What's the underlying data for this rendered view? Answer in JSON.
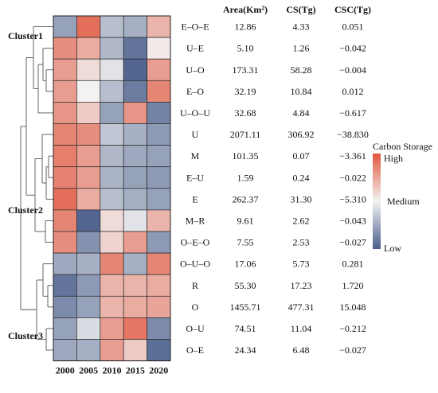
{
  "chart_data": {
    "type": "heatmap",
    "columns": [
      "2000",
      "2005",
      "2010",
      "2015",
      "2020"
    ],
    "rows": [
      "E–O–E",
      "U–E",
      "U–O",
      "E–O",
      "U–O–U",
      "U",
      "M",
      "E–U",
      "E",
      "M–R",
      "O–E–O",
      "O–U–O",
      "R",
      "O",
      "O–U",
      "O–E"
    ],
    "values": [
      [
        -0.55,
        0.85,
        -0.35,
        -0.45,
        0.4
      ],
      [
        0.65,
        0.45,
        -0.4,
        -0.85,
        0.05
      ],
      [
        0.55,
        0.15,
        -0.1,
        -0.95,
        0.55
      ],
      [
        0.55,
        0.0,
        -0.35,
        -0.8,
        0.7
      ],
      [
        0.6,
        0.25,
        -0.55,
        0.6,
        -0.75
      ],
      [
        0.7,
        0.65,
        -0.3,
        -0.45,
        -0.6
      ],
      [
        0.75,
        0.55,
        -0.4,
        -0.5,
        -0.55
      ],
      [
        0.72,
        0.55,
        -0.42,
        -0.55,
        -0.6
      ],
      [
        0.85,
        0.45,
        -0.35,
        -0.45,
        -0.55
      ],
      [
        0.7,
        -0.95,
        0.15,
        -0.1,
        0.4
      ],
      [
        0.65,
        -0.65,
        0.2,
        0.55,
        -0.6
      ],
      [
        -0.5,
        -0.45,
        0.7,
        -0.45,
        0.7
      ],
      [
        -0.85,
        -0.6,
        0.4,
        0.4,
        0.45
      ],
      [
        -0.7,
        -0.55,
        0.4,
        0.45,
        0.5
      ],
      [
        -0.55,
        -0.15,
        0.55,
        0.8,
        -0.7
      ],
      [
        -0.5,
        -0.45,
        0.55,
        0.25,
        -0.9
      ]
    ],
    "table_headers": [
      "Area(Km²)",
      "CS(Tg)",
      "CSC(Tg)"
    ],
    "table": [
      [
        "12.86",
        "4.33",
        "0.051"
      ],
      [
        "5.10",
        "1.26",
        "−0.042"
      ],
      [
        "173.31",
        "58.28",
        "−0.004"
      ],
      [
        "32.19",
        "10.84",
        "0.012"
      ],
      [
        "32.68",
        "4.84",
        "−0.617"
      ],
      [
        "2071.11",
        "306.92",
        "−38.830"
      ],
      [
        "101.35",
        "0.07",
        "−3.361"
      ],
      [
        "1.59",
        "0.24",
        "−0.022"
      ],
      [
        "262.37",
        "31.30",
        "−5.310"
      ],
      [
        "9.61",
        "2.62",
        "−0.043"
      ],
      [
        "7.55",
        "2.53",
        "−0.027"
      ],
      [
        "17.06",
        "5.73",
        "0.281"
      ],
      [
        "55.30",
        "17.23",
        "1.720"
      ],
      [
        "1455.71",
        "477.31",
        "15.048"
      ],
      [
        "74.51",
        "11.04",
        "−0.212"
      ],
      [
        "24.34",
        "6.48",
        "−0.027"
      ]
    ],
    "clusters": [
      {
        "label": "Cluster1",
        "rows": [
          0,
          1,
          2,
          3,
          4
        ]
      },
      {
        "label": "Cluster2",
        "rows": [
          5,
          6,
          7,
          8,
          9,
          10
        ]
      },
      {
        "label": "Cluster3",
        "rows": [
          11,
          12,
          13,
          14,
          15
        ]
      }
    ],
    "legend": {
      "title": "Carbon Storage",
      "high": "High",
      "medium": "Medium",
      "low": "Low",
      "colors": {
        "high": "#e0573f",
        "medium": "#f2f2f2",
        "low": "#4a5f8c"
      }
    }
  }
}
